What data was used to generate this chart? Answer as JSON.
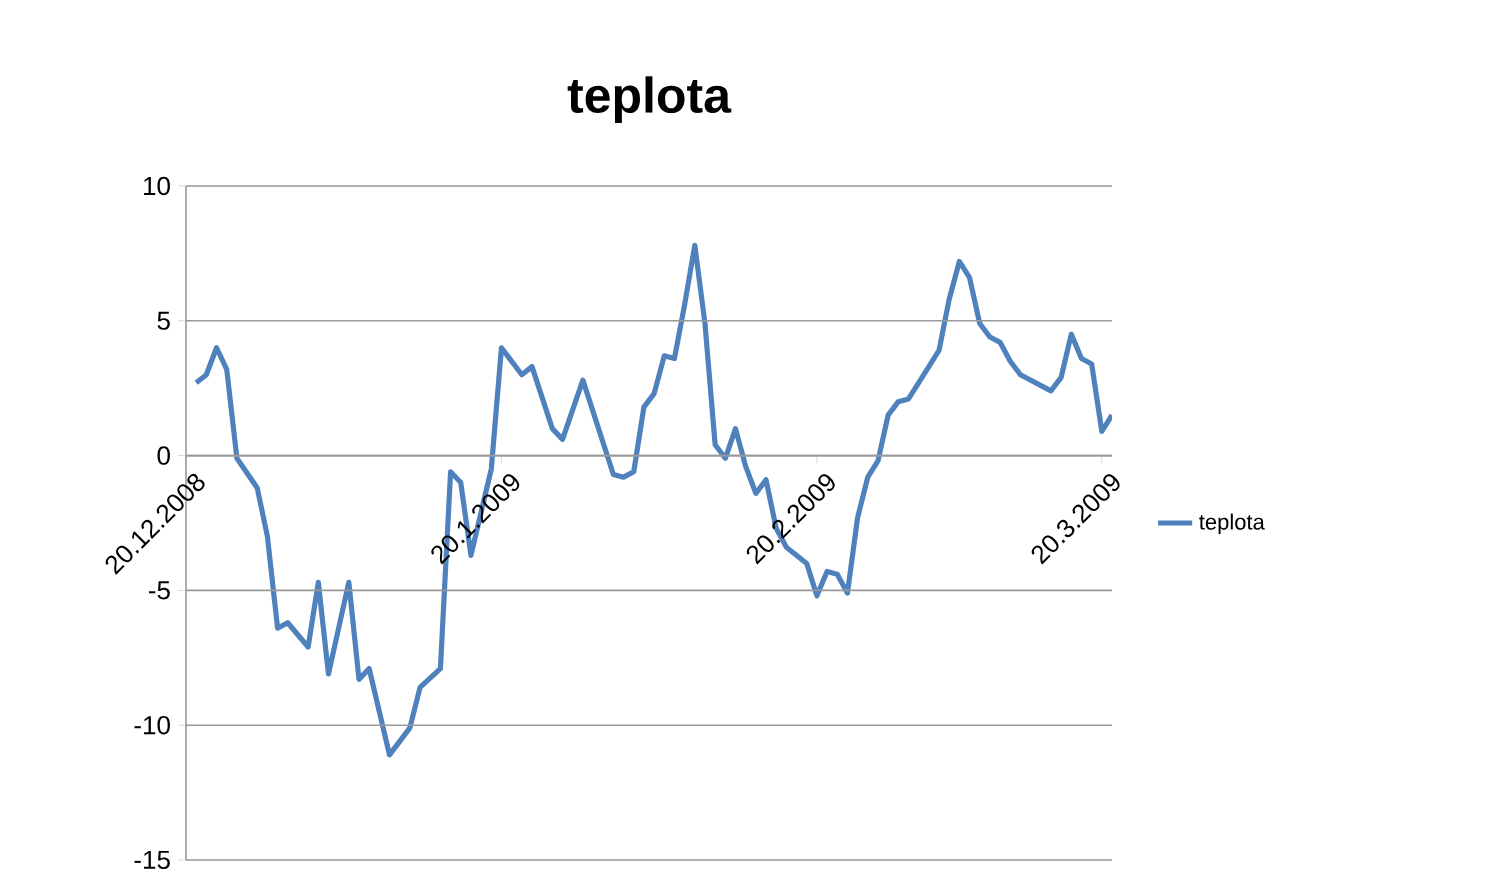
{
  "chart_data": {
    "type": "line",
    "title": "teplota",
    "x": [
      "2008-12-21",
      "2008-12-22",
      "2008-12-23",
      "2008-12-24",
      "2008-12-25",
      "2008-12-27",
      "2008-12-28",
      "2008-12-29",
      "2008-12-30",
      "2009-01-01",
      "2009-01-02",
      "2009-01-03",
      "2009-01-05",
      "2009-01-06",
      "2009-01-07",
      "2009-01-09",
      "2009-01-11",
      "2009-01-12",
      "2009-01-14",
      "2009-01-15",
      "2009-01-16",
      "2009-01-17",
      "2009-01-19",
      "2009-01-20",
      "2009-01-22",
      "2009-01-23",
      "2009-01-25",
      "2009-01-26",
      "2009-01-28",
      "2009-01-31",
      "2009-02-01",
      "2009-02-02",
      "2009-02-03",
      "2009-02-04",
      "2009-02-05",
      "2009-02-06",
      "2009-02-07",
      "2009-02-08",
      "2009-02-09",
      "2009-02-10",
      "2009-02-11",
      "2009-02-12",
      "2009-02-13",
      "2009-02-14",
      "2009-02-15",
      "2009-02-16",
      "2009-02-17",
      "2009-02-19",
      "2009-02-20",
      "2009-02-21",
      "2009-02-22",
      "2009-02-23",
      "2009-02-24",
      "2009-02-25",
      "2009-02-26",
      "2009-02-27",
      "2009-02-28",
      "2009-03-01",
      "2009-03-03",
      "2009-03-04",
      "2009-03-05",
      "2009-03-06",
      "2009-03-07",
      "2009-03-08",
      "2009-03-09",
      "2009-03-10",
      "2009-03-11",
      "2009-03-12",
      "2009-03-15",
      "2009-03-16",
      "2009-03-17",
      "2009-03-18",
      "2009-03-19",
      "2009-03-20",
      "2009-03-21"
    ],
    "series": [
      {
        "name": "teplota",
        "color": "#4f81bd",
        "values": [
          2.7,
          3.0,
          4.0,
          3.2,
          -0.1,
          -1.2,
          -3.0,
          -6.4,
          -6.2,
          -7.1,
          -4.7,
          -8.1,
          -4.7,
          -8.3,
          -7.9,
          -11.1,
          -10.1,
          -8.6,
          -7.9,
          -0.6,
          -1.0,
          -3.7,
          -0.5,
          4.0,
          3.0,
          3.3,
          1.0,
          0.6,
          2.8,
          -0.7,
          -0.8,
          -0.6,
          1.8,
          2.3,
          3.7,
          3.6,
          5.6,
          7.8,
          4.9,
          0.4,
          -0.1,
          1.0,
          -0.4,
          -1.4,
          -0.9,
          -2.7,
          -3.4,
          -4.0,
          -5.2,
          -4.3,
          -4.4,
          -5.1,
          -2.3,
          -0.8,
          -0.2,
          1.5,
          2.0,
          2.1,
          3.3,
          3.9,
          5.8,
          7.2,
          6.6,
          4.9,
          4.4,
          4.2,
          3.5,
          3.0,
          2.4,
          2.9,
          4.5,
          3.6,
          3.4,
          0.9,
          1.5
        ]
      }
    ],
    "xlim": [
      "2008-12-20",
      "2009-03-21"
    ],
    "xticks": [
      {
        "value": "2008-12-20",
        "label": "20.12.2008"
      },
      {
        "value": "2009-01-20",
        "label": "20.1.2009"
      },
      {
        "value": "2009-02-20",
        "label": "20.2.2009"
      },
      {
        "value": "2009-03-20",
        "label": "20.3.2009"
      }
    ],
    "ylim": [
      -15,
      10
    ],
    "yticks": [
      -15,
      -10,
      -5,
      0,
      5,
      10
    ],
    "grid": "y",
    "legend": "right"
  }
}
